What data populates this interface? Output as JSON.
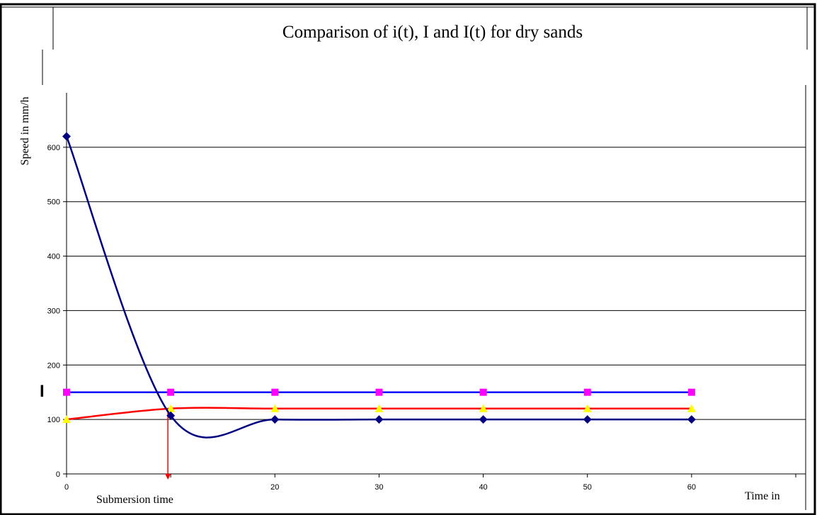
{
  "chart_data": {
    "type": "line",
    "title": "Comparison of i(t), I and I(t) for dry sands",
    "ylabel": "Speed in mm/h",
    "xlabel": "Time in",
    "x_annotation": "Submersion time",
    "left_marker_label": "I",
    "x": [
      0,
      10,
      20,
      30,
      40,
      50,
      60
    ],
    "xlim": [
      0,
      70
    ],
    "ylim": [
      0,
      700
    ],
    "x_ticks": [
      0,
      10,
      20,
      30,
      40,
      50,
      60
    ],
    "x_tick_labels": [
      "0",
      "",
      "20",
      "30",
      "40",
      "50",
      "60"
    ],
    "y_ticks": [
      0,
      100,
      200,
      300,
      400,
      500,
      600
    ],
    "grid": true,
    "legend": "none",
    "submersion_time_x": 10,
    "series": [
      {
        "name": "",
        "color": "#0000ff",
        "marker_color": "#ff00ff",
        "marker": "square",
        "values": [
          150,
          150,
          150,
          150,
          150,
          150,
          150
        ]
      },
      {
        "name": "",
        "color": "#ff0000",
        "marker_color": "#ffff00",
        "marker": "triangle",
        "values": [
          100,
          120,
          120,
          120,
          120,
          120,
          120
        ]
      },
      {
        "name": "",
        "color": "#000080",
        "marker_color": "#000080",
        "marker": "diamond",
        "values": [
          620,
          107,
          100,
          100,
          100,
          100,
          100
        ]
      }
    ]
  }
}
